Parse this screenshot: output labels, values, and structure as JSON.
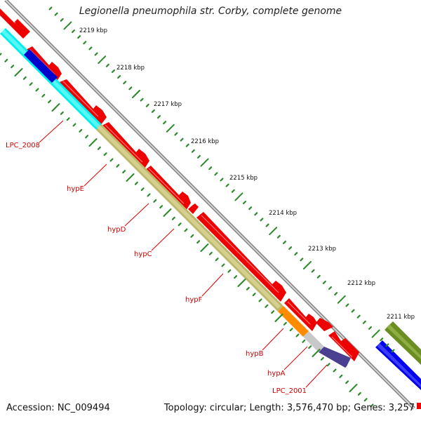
{
  "title": "Legionella pneumophila str. Corby, complete genome",
  "footer": {
    "accession": "Accession: NC_009494",
    "summary": "Topology: circular; Length: 3,576,470 bp; Genes: 3,257"
  },
  "ticks": [
    "2219 kbp",
    "2218 kbp",
    "2217 kbp",
    "2216 kbp",
    "2215 kbp",
    "2214 kbp",
    "2213 kbp",
    "2212 kbp",
    "2211 kbp"
  ],
  "genes": [
    {
      "label": "LPC_2008",
      "color": "#00ffff"
    },
    {
      "label": "hypE",
      "color": "#bdb76b"
    },
    {
      "label": "hypD",
      "color": "#bdb76b"
    },
    {
      "label": "hypC",
      "color": "#bdb76b"
    },
    {
      "label": "hypF",
      "color": "#bdb76b"
    },
    {
      "label": "hypB",
      "color": "#ff8c00"
    },
    {
      "label": "hypA",
      "color": "#c0c0c0"
    },
    {
      "label": "LPC_2001",
      "color": "#483d8b"
    }
  ],
  "colors": {
    "forward_gene": "#ff0000",
    "label_line": "#dd0000",
    "label_text": "#cc0000",
    "tick": "#2a8a2a",
    "backbone": "#7a7a7a",
    "blue_gene": "#0000ee",
    "olive_gene": "#6b8e23"
  }
}
